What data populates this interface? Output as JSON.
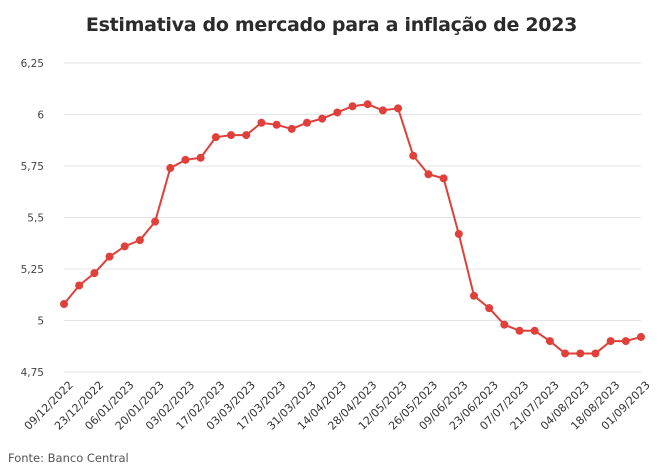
{
  "title": "Estimativa do mercado para a inflação de 2023",
  "source": "Fonte: Banco Central",
  "colors": {
    "series": "#e0403a",
    "grid": "#e3e3e3",
    "text": "#2b2b2b"
  },
  "chart_data": {
    "type": "line",
    "title": "Estimativa do mercado para a inflação de 2023",
    "xlabel": "",
    "ylabel": "",
    "ylim": [
      4.75,
      6.25
    ],
    "yticks": [
      "4,75",
      "5",
      "5,25",
      "5,5",
      "5,75",
      "6",
      "6,25"
    ],
    "ytick_values": [
      4.75,
      5,
      5.25,
      5.5,
      5.75,
      6,
      6.25
    ],
    "grid": "horizontal",
    "xtick_labels": [
      "09/12/2022",
      "23/12/2022",
      "06/01/2023",
      "20/01/2023",
      "03/02/2023",
      "17/02/2023",
      "03/03/2023",
      "17/03/2023",
      "31/03/2023",
      "14/04/2023",
      "28/04/2023",
      "12/05/2023",
      "26/05/2023",
      "09/06/2023",
      "23/06/2023",
      "07/07/2023",
      "21/07/2023",
      "04/08/2023",
      "18/08/2023",
      "01/09/2023"
    ],
    "series": [
      {
        "values": [
          5.08,
          5.17,
          5.23,
          5.31,
          5.36,
          5.39,
          5.48,
          5.74,
          5.78,
          5.79,
          5.89,
          5.9,
          5.9,
          5.96,
          5.95,
          5.93,
          5.96,
          5.98,
          6.01,
          6.04,
          6.05,
          6.02,
          6.03,
          5.8,
          5.71,
          5.69,
          5.42,
          5.12,
          5.06,
          4.98,
          4.95,
          4.95,
          4.9,
          4.84,
          4.84,
          4.84,
          4.9,
          4.9,
          4.92
        ]
      }
    ]
  }
}
